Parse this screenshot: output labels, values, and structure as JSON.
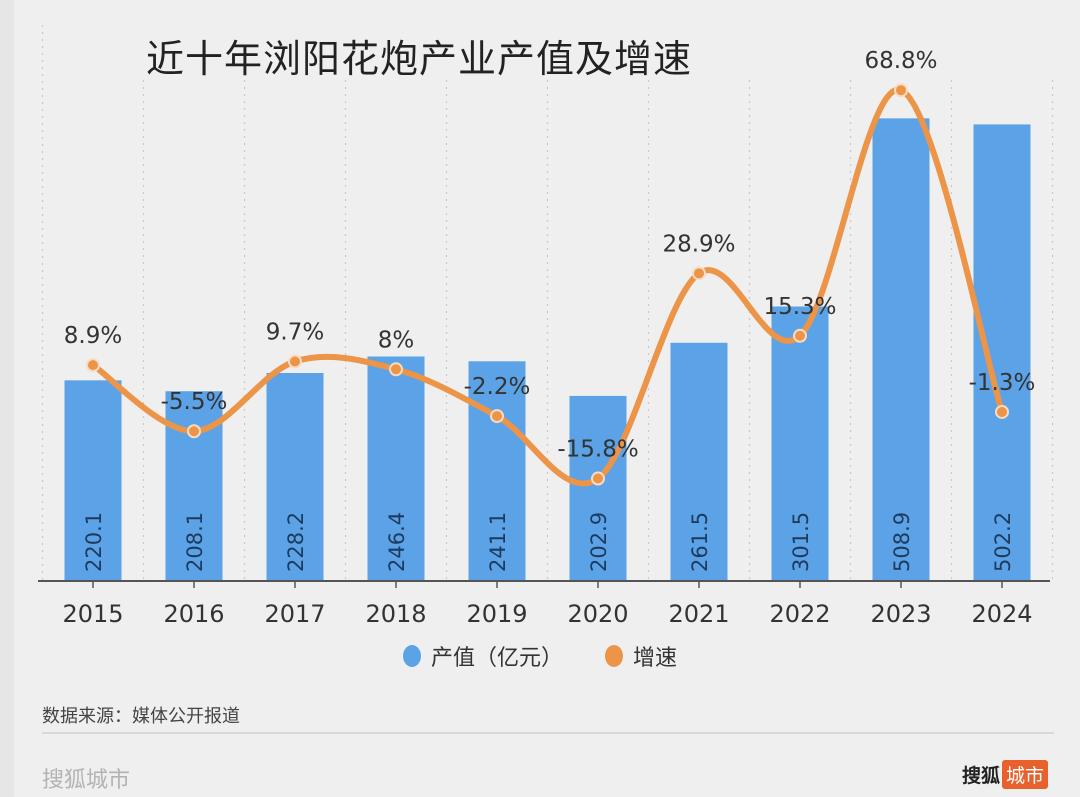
{
  "chart_data": {
    "type": "bar",
    "title": "近十年浏阳花炮产业产值及增速",
    "categories": [
      "2015",
      "2016",
      "2017",
      "2018",
      "2019",
      "2020",
      "2021",
      "2022",
      "2023",
      "2024"
    ],
    "series": [
      {
        "name": "产值（亿元）",
        "type": "bar",
        "axis": "left",
        "color": "#5ba3e6",
        "values": [
          220.1,
          208.1,
          228.2,
          246.4,
          241.1,
          202.9,
          261.5,
          301.5,
          508.9,
          502.2
        ],
        "labels": [
          "220.1",
          "208.1",
          "228.2",
          "246.4",
          "241.1",
          "202.9",
          "261.5",
          "301.5",
          "508.9",
          "502.2"
        ]
      },
      {
        "name": "增速",
        "type": "line",
        "axis": "right",
        "smooth": true,
        "color": "#ec9448",
        "values": [
          8.9,
          -5.5,
          9.7,
          8,
          -2.2,
          -15.8,
          28.9,
          15.3,
          68.8,
          -1.3
        ],
        "labels": [
          "8.9%",
          "-5.5%",
          "9.7%",
          "8%",
          "-2.2%",
          "-15.8%",
          "28.9%",
          "15.3%",
          "68.8%",
          "-1.3%"
        ]
      }
    ],
    "ylim": [
      0,
      560
    ],
    "y2lim": [
      -30,
      80
    ],
    "grid": "vertical dotted",
    "legend": "bottom-center"
  },
  "footer": {
    "source": "数据来源：媒体公开报道",
    "brand_left": "搜狐城市",
    "brand_right_main": "搜狐",
    "brand_right_tag": "城市"
  }
}
